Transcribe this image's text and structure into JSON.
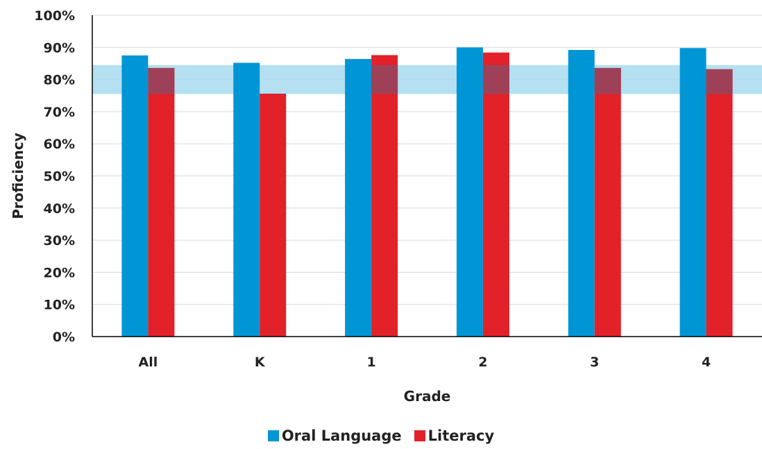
{
  "chart_data": {
    "type": "bar",
    "xlabel": "Grade",
    "ylabel": "Proficiency",
    "categories": [
      "All",
      "K",
      "1",
      "2",
      "3",
      "4"
    ],
    "series": [
      {
        "name": "Oral Language",
        "color": "#0096d6",
        "values": [
          87.5,
          85.2,
          86.4,
          90.0,
          89.2,
          89.8
        ]
      },
      {
        "name": "Literacy",
        "color": "#e32128",
        "values": [
          83.6,
          75.6,
          87.6,
          88.4,
          83.6,
          83.2
        ]
      }
    ],
    "ylim": [
      0,
      100
    ],
    "yticks": [
      "0%",
      "10%",
      "20%",
      "30%",
      "40%",
      "50%",
      "60%",
      "70%",
      "80%",
      "90%",
      "100%"
    ],
    "target_band": {
      "from": 75.5,
      "to": 84.5,
      "color": "#a7dbf0"
    },
    "grid": true,
    "legend_position": "bottom-center"
  }
}
